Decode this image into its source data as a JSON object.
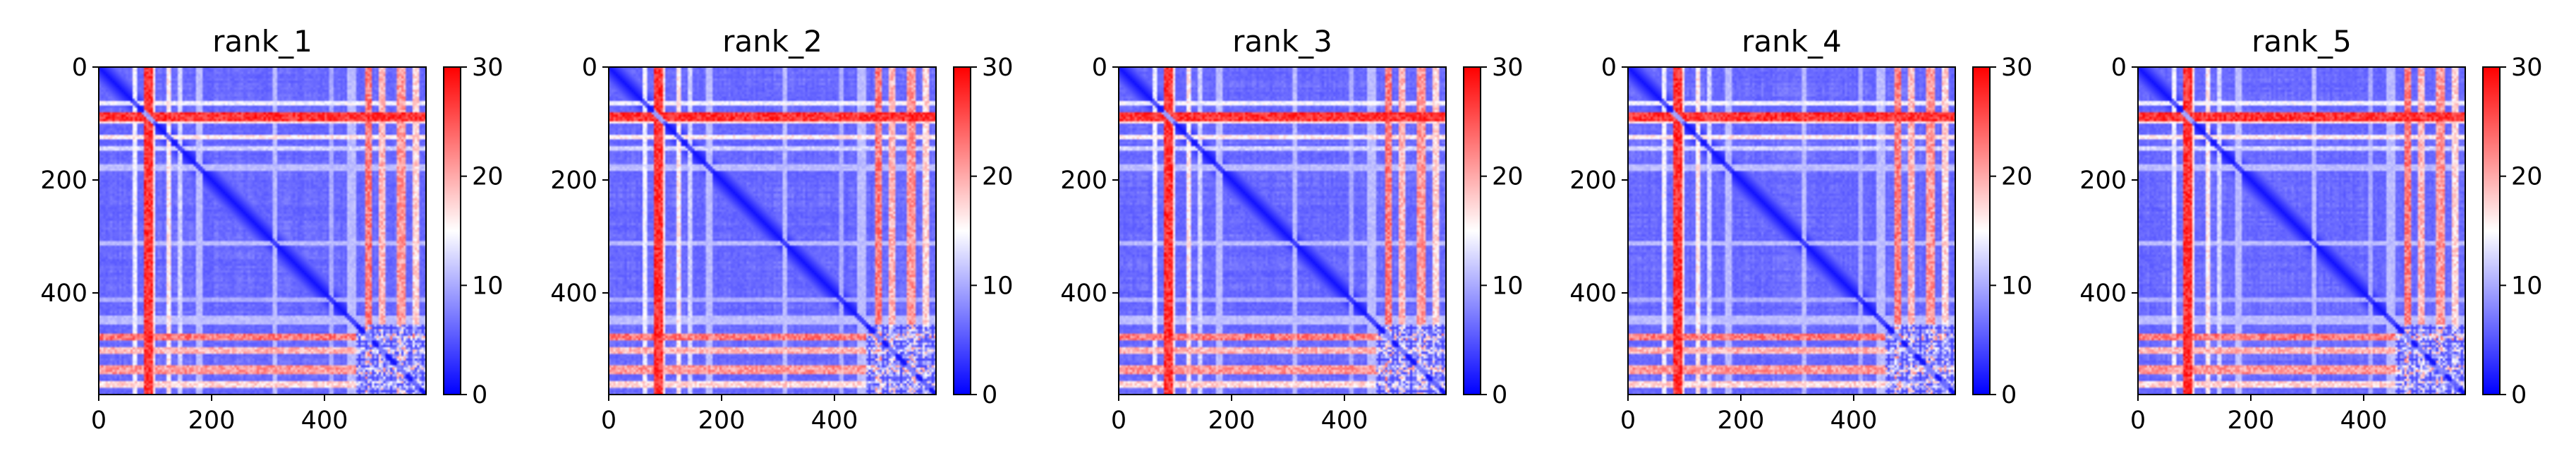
{
  "chart_data": {
    "type": "heatmap",
    "colormap": "bwr",
    "color_range": [
      0,
      30
    ],
    "colorbar_ticks": [
      0,
      10,
      20,
      30
    ],
    "axis_range": {
      "x": [
        0,
        580
      ],
      "y": [
        580,
        0
      ]
    },
    "x_ticks": [
      0,
      200,
      400
    ],
    "y_ticks": [
      0,
      200,
      400
    ],
    "grid": false,
    "matrix_size": 580,
    "panels": [
      {
        "title": "rank_1"
      },
      {
        "title": "rank_2"
      },
      {
        "title": "rank_3"
      },
      {
        "title": "rank_4"
      },
      {
        "title": "rank_5"
      }
    ],
    "structure": {
      "diagonal_value": 1,
      "background_range": [
        3,
        9
      ],
      "high_rows": [
        [
          78,
          92,
          30
        ],
        [
          60,
          66,
          16
        ],
        [
          118,
          124,
          18
        ],
        [
          138,
          146,
          14
        ]
      ],
      "high_cols": [
        [
          470,
          480,
          26
        ],
        [
          495,
          505,
          22
        ],
        [
          525,
          540,
          24
        ],
        [
          555,
          565,
          20
        ]
      ],
      "mid_bands": [
        [
          82,
          96,
          18
        ],
        [
          170,
          180,
          12
        ],
        [
          305,
          315,
          12
        ],
        [
          405,
          412,
          11
        ],
        [
          440,
          452,
          12
        ]
      ]
    }
  }
}
